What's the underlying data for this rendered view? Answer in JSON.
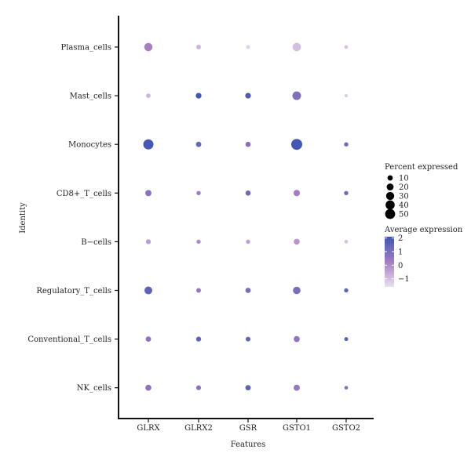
{
  "chart_data": {
    "type": "dotplot",
    "xlabel": "Features",
    "ylabel": "Identity",
    "features": [
      "GLRX",
      "GLRX2",
      "GSR",
      "GSTO1",
      "GSTO2"
    ],
    "identities": [
      "Plasma_cells",
      "Mast_cells",
      "Monocytes",
      "CD8+_T_cells",
      "B−cells",
      "Regulatory_T_cells",
      "Conventional_T_cells",
      "NK_cells"
    ],
    "percent_expressed": [
      [
        31,
        7,
        4,
        33,
        3
      ],
      [
        6,
        12,
        12,
        35,
        2
      ],
      [
        52,
        10,
        9,
        62,
        5
      ],
      [
        15,
        5,
        9,
        16,
        5
      ],
      [
        8,
        5,
        5,
        13,
        3
      ],
      [
        27,
        7,
        10,
        25,
        5
      ],
      [
        10,
        8,
        7,
        14,
        4
      ],
      [
        14,
        7,
        10,
        15,
        3
      ]
    ],
    "average_expression": [
      [
        0.2,
        -0.8,
        -1.3,
        -1.0,
        -1.0
      ],
      [
        -0.8,
        2.0,
        1.8,
        0.9,
        -1.2
      ],
      [
        2.0,
        1.3,
        0.8,
        2.0,
        1.2
      ],
      [
        0.7,
        0.4,
        1.2,
        0.3,
        1.2
      ],
      [
        -0.4,
        0.0,
        -0.4,
        -0.2,
        -1.0
      ],
      [
        1.5,
        0.5,
        1.0,
        1.0,
        1.5
      ],
      [
        0.7,
        1.5,
        1.4,
        0.6,
        1.5
      ],
      [
        0.7,
        0.8,
        1.5,
        0.5,
        0.8
      ]
    ],
    "legend_size": {
      "title": "Percent expressed",
      "breaks": [
        10,
        20,
        30,
        40,
        50
      ],
      "labels": [
        "10",
        "20",
        "30",
        "40",
        "50"
      ]
    },
    "legend_color": {
      "title": "Average expression",
      "ticks": [
        2,
        1,
        0,
        -1
      ],
      "labels": [
        "2",
        "1",
        "0",
        "−1"
      ],
      "range": [
        -1.6,
        2.1
      ],
      "low_color": "#e9e0f0",
      "mid_color": "#a57dc1",
      "high_color": "#3f55b4"
    },
    "legend_position": "right",
    "grid": false
  }
}
